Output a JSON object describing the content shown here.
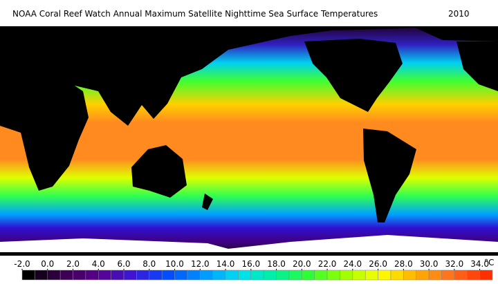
{
  "title": "NOAA Coral Reef Watch Annual Maximum Satellite Nighttime Sea Surface Temperatures",
  "year": "2010",
  "colorbar": {
    "clim": [
      -2,
      35
    ],
    "unit": "°C",
    "ticks": [
      {
        "value": -2,
        "label": "-2.0"
      },
      {
        "value": 0,
        "label": "0.0"
      },
      {
        "value": 2,
        "label": "2.0"
      },
      {
        "value": 4,
        "label": "4.0"
      },
      {
        "value": 6,
        "label": "6.0"
      },
      {
        "value": 8,
        "label": "8.0"
      },
      {
        "value": 10,
        "label": "10.0"
      },
      {
        "value": 12,
        "label": "12.0"
      },
      {
        "value": 14,
        "label": "14.0"
      },
      {
        "value": 16,
        "label": "16.0"
      },
      {
        "value": 18,
        "label": "18.0"
      },
      {
        "value": 20,
        "label": "20.0"
      },
      {
        "value": 22,
        "label": "22.0"
      },
      {
        "value": 24,
        "label": "24.0"
      },
      {
        "value": 26,
        "label": "26.0"
      },
      {
        "value": 28,
        "label": "28.0"
      },
      {
        "value": 30,
        "label": "30.0"
      },
      {
        "value": 32,
        "label": "32.0"
      },
      {
        "value": 34,
        "label": "34.0"
      }
    ],
    "colormap": [
      "#000000",
      "#3a0050",
      "#5a0090",
      "#3a18d8",
      "#0050ff",
      "#0098ff",
      "#00e0f0",
      "#00f0a0",
      "#30ff30",
      "#a0ff00",
      "#ffff00",
      "#ffb000",
      "#ff7020",
      "#ff3000"
    ]
  }
}
